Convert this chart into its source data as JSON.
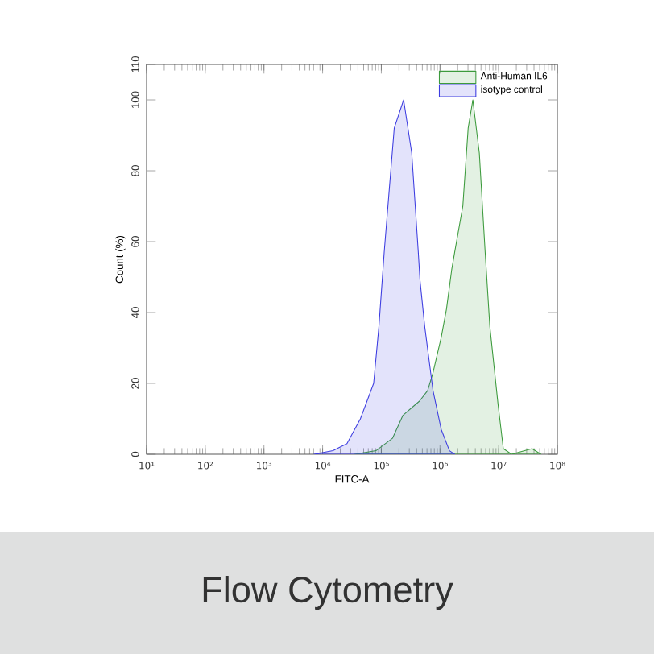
{
  "chart_data": {
    "type": "area",
    "xlabel": "FITC-A",
    "ylabel": "Count (%)",
    "log": "x",
    "xlim": [
      10,
      100000000
    ],
    "ylim": [
      0,
      110
    ],
    "xticks": [
      {
        "value": 10,
        "label": "10¹"
      },
      {
        "value": 100,
        "label": "10²"
      },
      {
        "value": 1000,
        "label": "10³"
      },
      {
        "value": 10000,
        "label": "10⁴"
      },
      {
        "value": 100000,
        "label": "10⁵"
      },
      {
        "value": 1000000,
        "label": "10⁶"
      },
      {
        "value": 10000000,
        "label": "10⁷"
      },
      {
        "value": 100000000,
        "label": "10⁸"
      }
    ],
    "yticks": [
      0,
      20,
      40,
      60,
      80,
      100,
      110
    ],
    "legend": "top right",
    "series": [
      {
        "name": "Anti-Human IL6",
        "color": "#3c9a3c",
        "x": [
          35000,
          81000,
          155000,
          234000,
          447000,
          617000,
          759000,
          1050000,
          1290000,
          1580000,
          1780000,
          2450000,
          3020000,
          3630000,
          4680000,
          5890000,
          7080000,
          9770000,
          12000000,
          16600000,
          37000000,
          52500000
        ],
        "values": [
          0,
          1,
          4.5,
          11,
          15,
          18,
          23,
          33,
          41,
          52,
          57,
          70,
          92,
          100,
          85,
          57,
          36,
          14,
          1.6,
          0,
          1.6,
          0
        ]
      },
      {
        "name": "isotype control",
        "color": "#3c3ce0",
        "x": [
          7100,
          15000,
          26000,
          44000,
          74000,
          91000,
          112000,
          166000,
          240000,
          330000,
          427000,
          457000,
          550000,
          760000,
          1050000,
          1450000,
          1780000
        ],
        "values": [
          0,
          1,
          3,
          10,
          20,
          36,
          57,
          92,
          100,
          85,
          57,
          49,
          36,
          18,
          7,
          1,
          0
        ]
      }
    ],
    "annotations": [
      "Flow Cytometry"
    ]
  }
}
